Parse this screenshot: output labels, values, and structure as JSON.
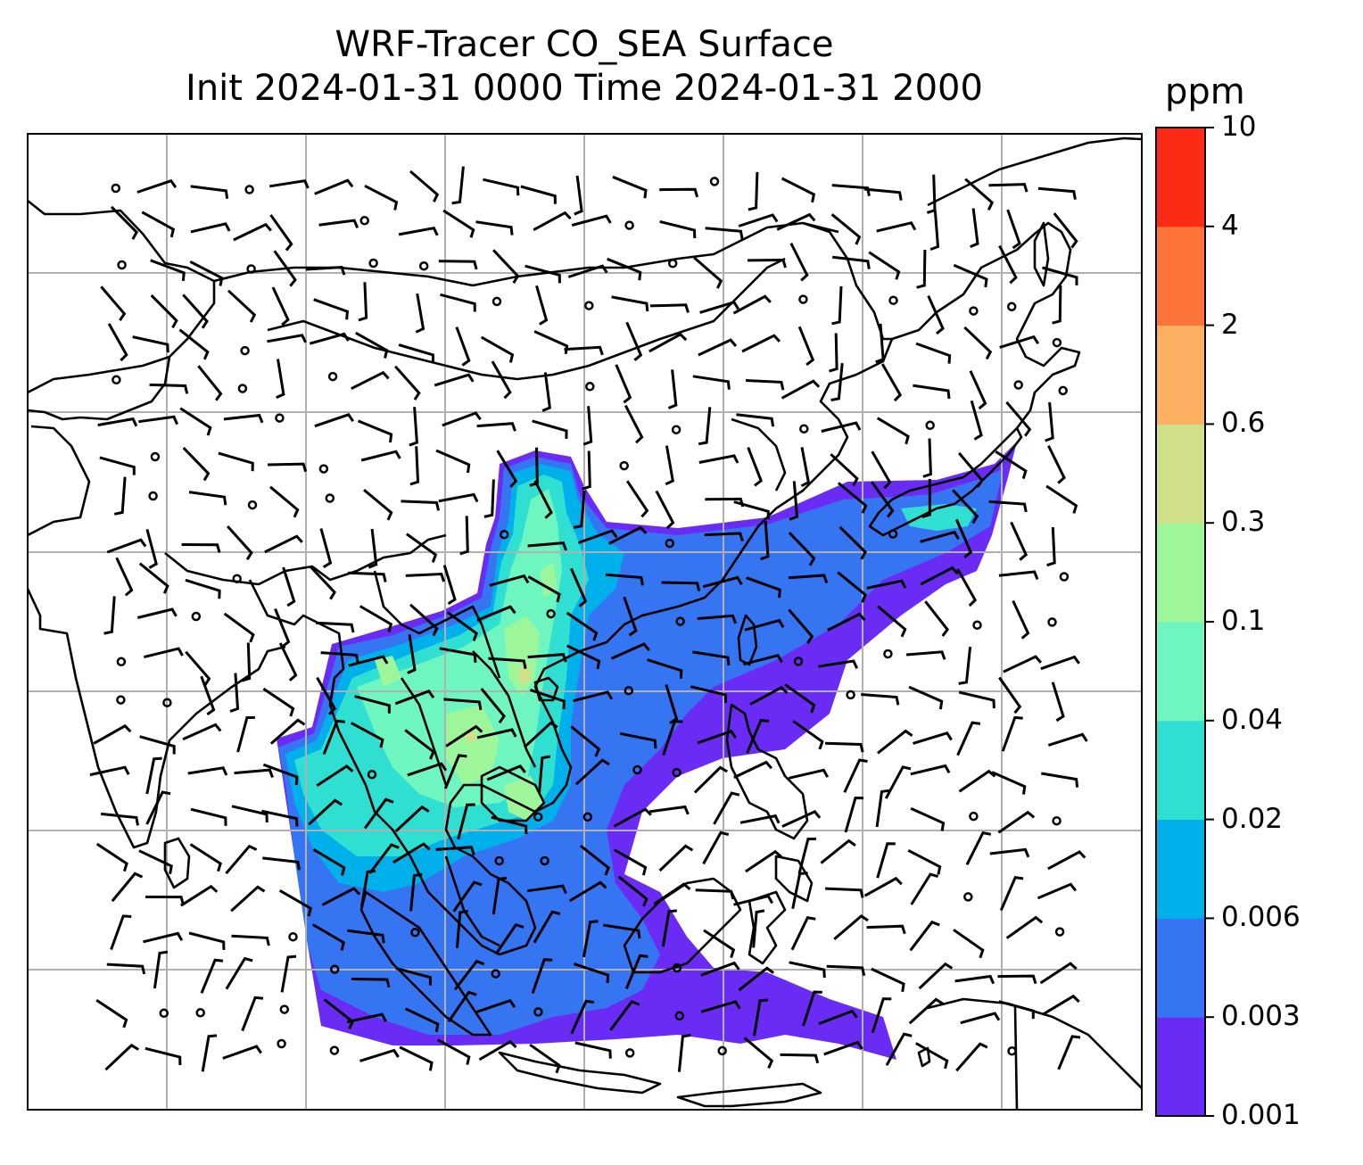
{
  "title": {
    "line1": "WRF-Tracer CO_SEA Surface",
    "line2": "Init 2024-01-31 0000 Time 2024-01-31 2000"
  },
  "colorbar": {
    "unit": "ppm",
    "levels": [
      "0.001",
      "0.003",
      "0.006",
      "0.02",
      "0.04",
      "0.1",
      "0.3",
      "0.6",
      "2",
      "4",
      "10"
    ],
    "colors": [
      "#6a2cf5",
      "#3675f2",
      "#00b0eb",
      "#2fe0d2",
      "#6ff6c0",
      "#9df79a",
      "#cfe089",
      "#fbb161",
      "#fd7338",
      "#fd2a15"
    ]
  },
  "map": {
    "gridlines": true,
    "features": [
      "coastlines",
      "country-borders",
      "wind-barbs",
      "tracer-concentration-shading"
    ]
  }
}
